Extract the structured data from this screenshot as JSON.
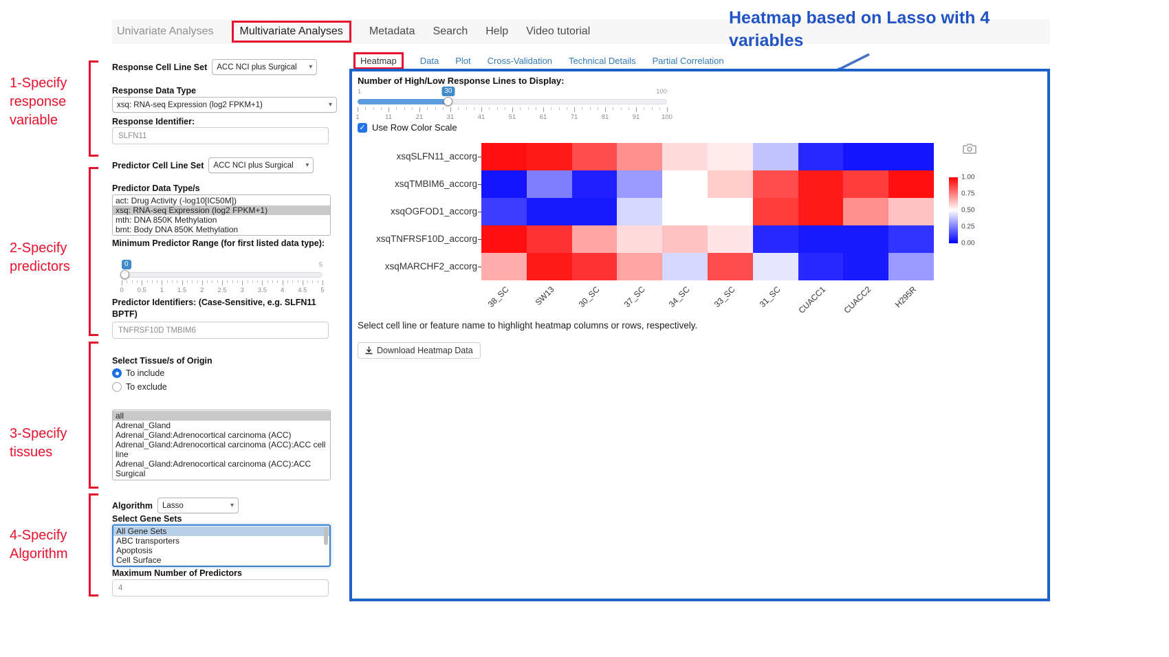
{
  "nav": {
    "items": [
      {
        "label": "Univariate Analyses",
        "muted": true
      },
      {
        "label": "Multivariate Analyses",
        "active": true,
        "red_box": true
      },
      {
        "label": "Metadata"
      },
      {
        "label": "Search"
      },
      {
        "label": "Help"
      },
      {
        "label": "Video tutorial"
      }
    ]
  },
  "annotations": {
    "blue_heading": "Heatmap based on Lasso with 4 variables",
    "steps": [
      "1-Specify response variable",
      "2-Specify predictors",
      "3-Specify tissues",
      "4-Specify Algorithm"
    ]
  },
  "icons": {
    "caret_glyph": "▾",
    "check_glyph": "✓"
  },
  "sidebar": {
    "response_cell_line_set": {
      "label": "Response Cell Line Set",
      "value": "ACC NCI plus Surgical"
    },
    "response_data_type": {
      "label": "Response Data Type",
      "value": "xsq: RNA-seq Expression (log2 FPKM+1)"
    },
    "response_identifier": {
      "label": "Response Identifier:",
      "value": "SLFN11"
    },
    "predictor_cell_line_set": {
      "label": "Predictor Cell Line Set",
      "value": "ACC NCI plus Surgical"
    },
    "predictor_data_types": {
      "label": "Predictor Data Type/s",
      "options": [
        "act: Drug Activity (-log10[IC50M])",
        "xsq: RNA-seq Expression (log2 FPKM+1)",
        "mth: DNA 850K Methylation",
        "bmt: Body DNA 850K Methylation"
      ],
      "selected": "xsq: RNA-seq Expression (log2 FPKM+1)"
    },
    "min_predictor_range": {
      "label": "Minimum Predictor Range (for first listed data type):",
      "value": "0",
      "max_label": "5",
      "ticks": [
        "0",
        "0.5",
        "1",
        "1.5",
        "2",
        "2.5",
        "3",
        "3.5",
        "4",
        "4.5",
        "5"
      ]
    },
    "predictor_identifiers": {
      "label": "Predictor Identifiers: (Case-Sensitive, e.g. SLFN11 BPTF)",
      "value": "TNFRSF10D TMBIM6"
    },
    "tissue_origin": {
      "label": "Select Tissue/s of Origin",
      "radios": [
        {
          "label": "To include",
          "selected": true
        },
        {
          "label": "To exclude",
          "selected": false
        }
      ],
      "options": [
        "all",
        "Adrenal_Gland",
        "Adrenal_Gland:Adrenocortical carcinoma (ACC)",
        "Adrenal_Gland:Adrenocortical carcinoma (ACC):ACC cell line",
        "Adrenal_Gland:Adrenocortical carcinoma (ACC):ACC Surgical"
      ],
      "selected": "all"
    },
    "algorithm": {
      "label": "Algorithm",
      "value": "Lasso"
    },
    "gene_sets": {
      "label": "Select Gene Sets",
      "options": [
        "All Gene Sets",
        "ABC transporters",
        "Apoptosis",
        "Cell Surface"
      ],
      "selected": "All Gene Sets"
    },
    "max_predictors": {
      "label": "Maximum Number of Predictors",
      "value": "4"
    }
  },
  "main": {
    "tabs": [
      {
        "label": "Heatmap",
        "active": true,
        "red_box": true
      },
      {
        "label": "Data"
      },
      {
        "label": "Plot"
      },
      {
        "label": "Cross-Validation"
      },
      {
        "label": "Technical Details"
      },
      {
        "label": "Partial Correlation"
      }
    ],
    "lines_slider": {
      "label": "Number of High/Low Response Lines to Display:",
      "value": "30",
      "min_label": "1",
      "max_label": "100",
      "ticks": [
        "1",
        "11",
        "21",
        "31",
        "41",
        "51",
        "61",
        "71",
        "81",
        "91",
        "100"
      ]
    },
    "row_color_scale": {
      "label": "Use Row Color Scale",
      "checked": true
    },
    "hint": "Select cell line or feature name to highlight heatmap columns or rows, respectively.",
    "download_button_label": "Download Heatmap Data"
  },
  "chart_data": {
    "type": "heatmap",
    "rows": [
      "xsqSLFN11_accorg",
      "xsqTMBIM6_accorg",
      "xsqOGFOD1_accorg",
      "xsqTNFRSF10D_accorg",
      "xsqMARCHF2_accorg"
    ],
    "columns": [
      "38_SC",
      "SW13",
      "30_SC",
      "37_SC",
      "34_SC",
      "33_SC",
      "31_SC",
      "CUACC1",
      "CUACC2",
      "H295R"
    ],
    "values": [
      [
        0.97,
        0.95,
        0.85,
        0.72,
        0.57,
        0.54,
        0.38,
        0.08,
        0.04,
        0.04
      ],
      [
        0.04,
        0.25,
        0.06,
        0.3,
        0.5,
        0.6,
        0.85,
        0.95,
        0.88,
        0.97
      ],
      [
        0.12,
        0.05,
        0.05,
        0.42,
        0.5,
        0.5,
        0.88,
        0.95,
        0.72,
        0.62
      ],
      [
        0.97,
        0.9,
        0.68,
        0.57,
        0.62,
        0.55,
        0.08,
        0.05,
        0.05,
        0.1
      ],
      [
        0.66,
        0.95,
        0.9,
        0.68,
        0.42,
        0.85,
        0.45,
        0.08,
        0.05,
        0.3
      ]
    ],
    "value_range": [
      0,
      1
    ],
    "colorbar_ticks": [
      "1.00",
      "0.75",
      "0.50",
      "0.25",
      "0.00"
    ],
    "colorscale": {
      "high": "#ff0000",
      "mid": "#ffffff",
      "low": "#0000ff"
    },
    "legend_position": "right"
  },
  "colors": {
    "annotation_red": "#e8112d",
    "annotation_blue": "#2153c4",
    "panel_border_blue": "#1b63c9",
    "tab_link_blue": "#337ab7",
    "slider_blue": "#428bca",
    "list_selected_gray": "#c9c9c9",
    "list_selected_blue": "#b8cfe8"
  }
}
